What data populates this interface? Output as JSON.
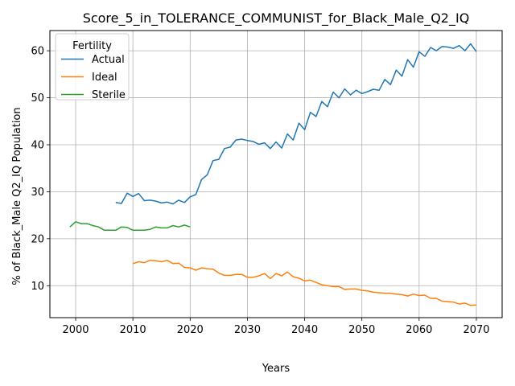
{
  "chart_data": {
    "type": "line",
    "title": "Score_5_in_TOLERANCE_COMMUNIST_for_Black_Male_Q2_IQ",
    "xlabel": "Years",
    "ylabel": "% of Black_Male Q2_IQ Population",
    "xlim": [
      1995.5,
      2074.5
    ],
    "ylim": [
      3.2,
      64.3
    ],
    "xticks": [
      2000,
      2010,
      2020,
      2030,
      2040,
      2050,
      2060,
      2070
    ],
    "yticks": [
      10,
      20,
      30,
      40,
      50,
      60
    ],
    "grid": true,
    "legend": {
      "title": "Fertility",
      "position": "top-left"
    },
    "series": [
      {
        "name": "Actual",
        "color": "#1f77b4",
        "x": [
          2007,
          2008,
          2009,
          2010,
          2011,
          2012,
          2013,
          2014,
          2015,
          2016,
          2017,
          2018,
          2019,
          2020,
          2021,
          2022,
          2023,
          2024,
          2025,
          2026,
          2027,
          2028,
          2029,
          2030,
          2031,
          2032,
          2033,
          2034,
          2035,
          2036,
          2037,
          2038,
          2039,
          2040,
          2041,
          2042,
          2043,
          2044,
          2045,
          2046,
          2047,
          2048,
          2049,
          2050,
          2051,
          2052,
          2053,
          2054,
          2055,
          2056,
          2057,
          2058,
          2059,
          2060,
          2061,
          2062,
          2063,
          2064,
          2065,
          2066,
          2067,
          2068,
          2069,
          2070
        ],
        "y": [
          27.7,
          27.5,
          29.7,
          29.0,
          29.6,
          28.1,
          28.2,
          28.0,
          27.6,
          27.8,
          27.4,
          28.2,
          27.7,
          28.9,
          29.4,
          32.6,
          33.6,
          36.6,
          36.9,
          39.2,
          39.5,
          41.0,
          41.2,
          40.9,
          40.7,
          40.1,
          40.4,
          39.2,
          40.6,
          39.3,
          42.3,
          41.0,
          44.6,
          43.2,
          46.9,
          46.0,
          49.2,
          48.1,
          51.2,
          50.0,
          51.9,
          50.6,
          51.6,
          50.9,
          51.3,
          51.8,
          51.6,
          53.9,
          52.8,
          55.9,
          54.6,
          58.1,
          56.5,
          59.8,
          58.8,
          60.7,
          60.0,
          60.9,
          60.8,
          60.5,
          61.1,
          60.0,
          61.5,
          59.8
        ]
      },
      {
        "name": "Ideal",
        "color": "#ff7f0e",
        "x": [
          2010,
          2011,
          2012,
          2013,
          2014,
          2015,
          2016,
          2017,
          2018,
          2019,
          2020,
          2021,
          2022,
          2023,
          2024,
          2025,
          2026,
          2027,
          2028,
          2029,
          2030,
          2031,
          2032,
          2033,
          2034,
          2035,
          2036,
          2037,
          2038,
          2039,
          2040,
          2041,
          2042,
          2043,
          2044,
          2045,
          2046,
          2047,
          2048,
          2049,
          2050,
          2051,
          2052,
          2053,
          2054,
          2055,
          2056,
          2057,
          2058,
          2059,
          2060,
          2061,
          2062,
          2063,
          2064,
          2065,
          2066,
          2067,
          2068,
          2069,
          2070
        ],
        "y": [
          14.7,
          15.1,
          14.9,
          15.4,
          15.3,
          15.1,
          15.4,
          14.7,
          14.8,
          13.9,
          13.8,
          13.3,
          13.8,
          13.6,
          13.5,
          12.7,
          12.2,
          12.2,
          12.4,
          12.4,
          11.8,
          11.8,
          12.1,
          12.6,
          11.5,
          12.6,
          12.1,
          12.9,
          11.9,
          11.6,
          11.0,
          11.2,
          10.7,
          10.2,
          10.0,
          9.8,
          9.8,
          9.2,
          9.3,
          9.3,
          9.0,
          8.9,
          8.6,
          8.5,
          8.4,
          8.4,
          8.2,
          8.1,
          7.8,
          8.2,
          7.9,
          8.0,
          7.3,
          7.3,
          6.7,
          6.6,
          6.5,
          6.1,
          6.3,
          5.8,
          5.9
        ]
      },
      {
        "name": "Sterile",
        "color": "#2ca02c",
        "x": [
          1999,
          2000,
          2001,
          2002,
          2003,
          2004,
          2005,
          2006,
          2007,
          2008,
          2009,
          2010,
          2011,
          2012,
          2013,
          2014,
          2015,
          2016,
          2017,
          2018,
          2019,
          2020
        ],
        "y": [
          22.5,
          23.6,
          23.2,
          23.2,
          22.8,
          22.5,
          21.8,
          21.8,
          21.8,
          22.5,
          22.4,
          21.8,
          21.8,
          21.8,
          22.0,
          22.5,
          22.3,
          22.3,
          22.8,
          22.5,
          22.9,
          22.5
        ]
      }
    ]
  }
}
